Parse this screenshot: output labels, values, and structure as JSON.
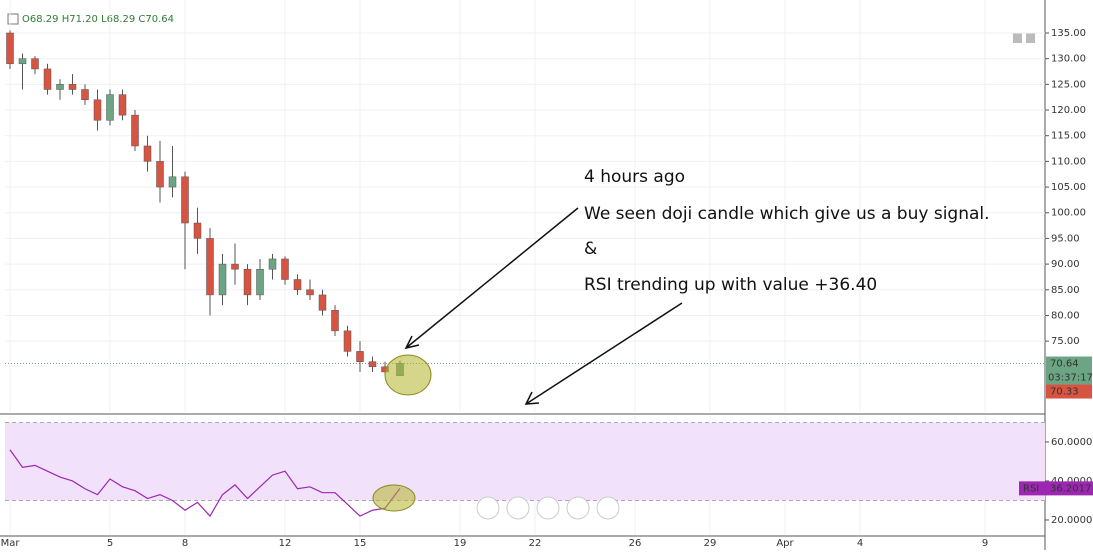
{
  "chart_data": [
    {
      "type": "candlestick",
      "ohlc_legend": [
        "O68.29",
        "H71.20",
        "L68.29",
        "C70.64"
      ],
      "x": [
        0,
        0.5,
        1,
        1.5,
        2,
        2.5,
        3,
        3.5,
        4,
        4.5,
        5,
        5.5,
        6,
        6.5,
        7,
        7.5,
        8,
        8.5,
        9,
        9.5,
        10,
        10.5,
        11,
        11.5,
        12,
        12.5,
        13,
        13.5,
        14,
        14.5,
        15,
        15.6
      ],
      "open": [
        135,
        129,
        130,
        128,
        124,
        125,
        124,
        122,
        118,
        123,
        119,
        113,
        110,
        105,
        107,
        98,
        95,
        84,
        90,
        89,
        84,
        89,
        91,
        87,
        85,
        84,
        81,
        77,
        73,
        71,
        70,
        68.29
      ],
      "high": [
        135.5,
        131,
        130.5,
        129,
        126,
        127,
        125,
        124,
        124,
        124,
        120,
        115,
        114,
        113,
        108,
        101,
        97,
        92,
        94,
        90,
        91,
        92,
        91.5,
        88,
        87,
        85,
        82,
        78,
        75,
        72,
        71,
        71.2
      ],
      "low": [
        128,
        124,
        127,
        123,
        122,
        123,
        121,
        116,
        117,
        118,
        112,
        108,
        102,
        103,
        89,
        92,
        80,
        82,
        86,
        82,
        83,
        87,
        86,
        84,
        83,
        80,
        76,
        72,
        69,
        69,
        68.5,
        68.29
      ],
      "close": [
        129,
        130,
        128,
        124,
        125,
        124,
        122,
        118,
        123,
        119,
        113,
        110,
        105,
        107,
        98,
        95,
        84,
        90,
        89,
        84,
        89,
        91,
        87,
        85,
        84,
        81,
        77,
        73,
        71,
        70,
        69,
        70.64
      ],
      "up_color": "#6ba583",
      "down_color": "#d75442",
      "ylim": [
        61.2,
        140.45
      ],
      "yticks": [
        {
          "value": 75,
          "label": "75.00"
        },
        {
          "value": 80,
          "label": "80.00"
        },
        {
          "value": 85,
          "label": "85.00"
        },
        {
          "value": 90,
          "label": "90.00"
        },
        {
          "value": 95,
          "label": "95.00"
        },
        {
          "value": 100,
          "label": "100.00"
        },
        {
          "value": 105,
          "label": "105.00"
        },
        {
          "value": 110,
          "label": "110.00"
        },
        {
          "value": 115,
          "label": "115.00"
        },
        {
          "value": 120,
          "label": "120.00"
        },
        {
          "value": 125,
          "label": "125.00"
        },
        {
          "value": 130,
          "label": "130.00"
        },
        {
          "value": 135,
          "label": "135.00"
        }
      ],
      "xlim": [
        -0.2,
        41.4
      ],
      "xticks": [
        {
          "value": 0,
          "label": "Mar"
        },
        {
          "value": 4,
          "label": "5"
        },
        {
          "value": 7,
          "label": "8"
        },
        {
          "value": 11,
          "label": "12"
        },
        {
          "value": 14,
          "label": "15"
        },
        {
          "value": 18,
          "label": "19"
        },
        {
          "value": 21,
          "label": "22"
        },
        {
          "value": 25,
          "label": "26"
        },
        {
          "value": 28,
          "label": "29"
        },
        {
          "value": 31,
          "label": "Apr"
        },
        {
          "value": 34,
          "label": "4"
        },
        {
          "value": 39,
          "label": "9"
        }
      ],
      "grid": true,
      "countdown": "03:37:17",
      "bid": 70.33,
      "annotations": [
        "4 hours ago",
        "We seen doji candle which give us a buy signal.",
        "&",
        "RSI trending up with value +36.40"
      ]
    },
    {
      "type": "line",
      "x": [
        0,
        0.5,
        1,
        1.5,
        2,
        2.5,
        3,
        3.5,
        4,
        4.5,
        5,
        5.5,
        6,
        6.5,
        7,
        7.5,
        8,
        8.5,
        9,
        9.5,
        10,
        10.5,
        11,
        11.5,
        12,
        12.5,
        13,
        13.5,
        14,
        14.5,
        15,
        15.6
      ],
      "series": [
        {
          "name": "RSI",
          "color": "#9c27b0",
          "values": [
            56,
            47,
            48,
            45,
            42,
            40,
            36,
            33,
            41,
            37,
            35,
            31,
            33,
            30,
            25,
            29,
            22,
            33,
            38,
            31,
            37,
            43,
            45,
            36,
            37,
            34,
            34,
            28,
            22,
            25,
            26,
            36.2017
          ]
        }
      ],
      "ylim": [
        12.3,
        73.3
      ],
      "yticks": [
        {
          "value": 20,
          "label": "20.0000"
        },
        {
          "value": 40,
          "label": "40.0000"
        },
        {
          "value": 60,
          "label": "60.0000"
        }
      ],
      "band": [
        30,
        70
      ]
    }
  ]
}
